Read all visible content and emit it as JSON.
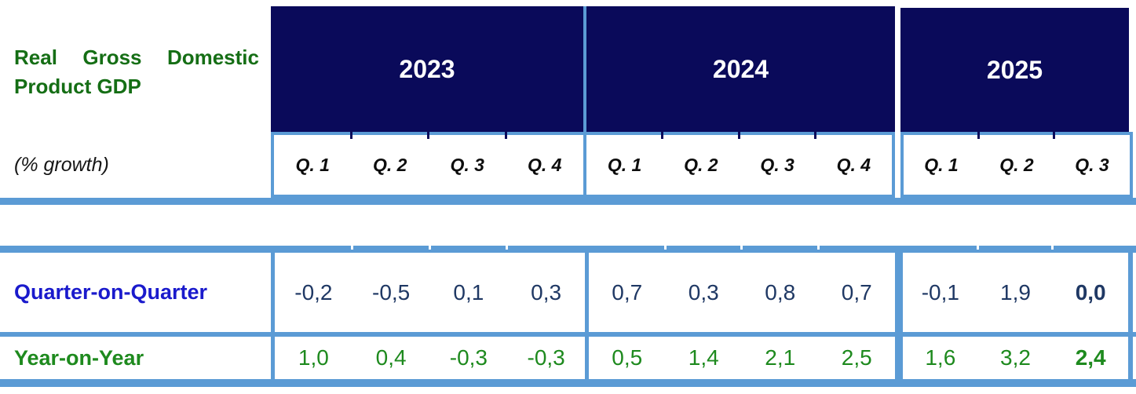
{
  "title": "Real Gross Domestic Product GDP",
  "subtitle": "(% growth)",
  "years": [
    {
      "label": "2023",
      "quarters": [
        "Q. 1",
        "Q. 2",
        "Q. 3",
        "Q. 4"
      ]
    },
    {
      "label": "2024",
      "quarters": [
        "Q. 1",
        "Q. 2",
        "Q. 3",
        "Q. 4"
      ]
    },
    {
      "label": "2025",
      "quarters": [
        "Q. 1",
        "Q. 2",
        "Q. 3"
      ]
    }
  ],
  "rows": [
    {
      "label": "Quarter-on-Quarter",
      "y2023": [
        "-0,2",
        "-0,5",
        "0,1",
        "0,3"
      ],
      "y2024": [
        "0,7",
        "0,3",
        "0,8",
        "0,7"
      ],
      "y2025": [
        "-0,1",
        "1,9",
        "0,0"
      ]
    },
    {
      "label": "Year-on-Year",
      "y2023": [
        "1,0",
        "0,4",
        "-0,3",
        "-0,3"
      ],
      "y2024": [
        "0,5",
        "1,4",
        "2,1",
        "2,5"
      ],
      "y2025": [
        "1,6",
        "3,2",
        "2,4"
      ]
    }
  ],
  "colors": {
    "year_header_navy": "#0a0a5a",
    "border_blue": "#5b9bd5",
    "title_green": "#156e15",
    "year_on_year_green": "#1e8a1e",
    "quarter_on_quarter_label_blue": "#1a1acc",
    "quarter_on_quarter_value_navy": "#1f3864"
  },
  "chart_data": {
    "type": "table",
    "title": "Real Gross Domestic Product GDP (% growth)",
    "columns": [
      "2023 Q1",
      "2023 Q2",
      "2023 Q3",
      "2023 Q4",
      "2024 Q1",
      "2024 Q2",
      "2024 Q3",
      "2024 Q4",
      "2025 Q1",
      "2025 Q2",
      "2025 Q3"
    ],
    "rows": [
      {
        "name": "Quarter-on-Quarter",
        "values": [
          -0.2,
          -0.5,
          0.1,
          0.3,
          0.7,
          0.3,
          0.8,
          0.7,
          -0.1,
          1.9,
          0.0
        ]
      },
      {
        "name": "Year-on-Year",
        "values": [
          1.0,
          0.4,
          -0.3,
          -0.3,
          0.5,
          1.4,
          2.1,
          2.5,
          1.6,
          3.2,
          2.4
        ]
      }
    ],
    "decimal_separator_displayed": ",",
    "notes": "Values in the 2025 Q3 column are shown in bold"
  }
}
